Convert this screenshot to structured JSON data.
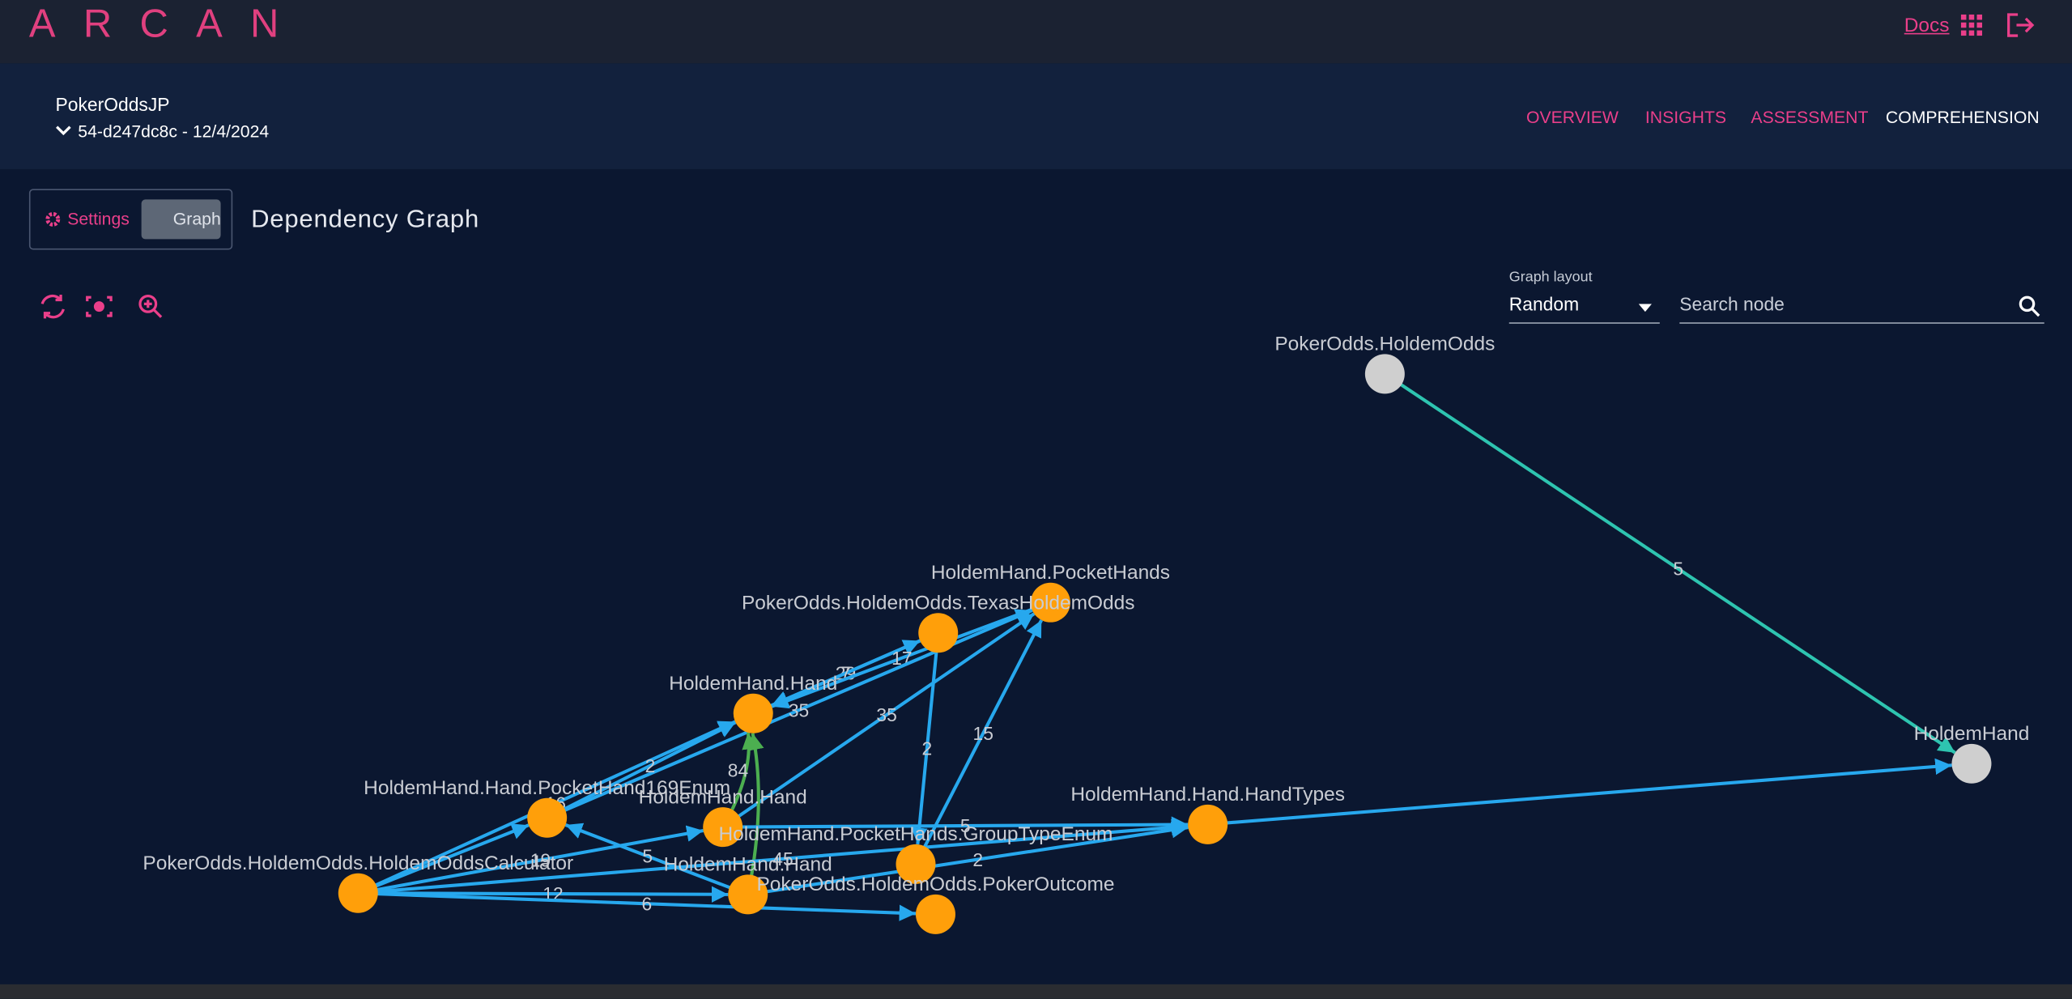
{
  "header": {
    "brand": "ARCAN",
    "docs": "Docs"
  },
  "project": {
    "name": "PokerOddsJP",
    "version": "54-d247dc8c - 12/4/2024"
  },
  "nav": [
    "OVERVIEW",
    "INSIGHTS",
    "ASSESSMENT",
    "COMPREHENSION"
  ],
  "tabs": [
    "Settings",
    "Graph"
  ],
  "title": "Dependency Graph",
  "controls": {
    "layout_label": "Graph layout",
    "layout_value": "Random",
    "search_placeholder": "Search node"
  },
  "graph": {
    "nodes": [
      {
        "label": "PokerOdds.HoldemOdds",
        "kind": "package"
      },
      {
        "label": "HoldemHand",
        "kind": "package"
      },
      {
        "label": "HoldemHand.PocketHands",
        "kind": "class"
      },
      {
        "label": "PokerOdds.HoldemOdds.TexasHoldemOdds",
        "kind": "class"
      },
      {
        "label": "HoldemHand.Hand",
        "kind": "class"
      },
      {
        "label": "HoldemHand.Hand.PocketHand169Enum",
        "kind": "class"
      },
      {
        "label": "HoldemHand.Hand",
        "kind": "class"
      },
      {
        "label": "HoldemHand.Hand.HandTypes",
        "kind": "class"
      },
      {
        "label": "HoldemHand.PocketHands.GroupTypeEnum",
        "kind": "class"
      },
      {
        "label": "PokerOdds.HoldemOdds.HoldemOddsCalculator",
        "kind": "class"
      },
      {
        "label": "HoldemHand.Hand",
        "kind": "class"
      },
      {
        "label": "PokerOdds.HoldemOdds.PokerOutcome",
        "kind": "class"
      }
    ],
    "edges": [
      {
        "from": 0,
        "to": 1,
        "label": "5",
        "color": "#2ec4b0"
      },
      {
        "from": 7,
        "to": 1,
        "color": "#27a8ee"
      },
      {
        "from": 4,
        "to": 3,
        "label": "29",
        "color": "#27a8ee"
      },
      {
        "from": 3,
        "to": 4,
        "label": "7",
        "color": "#27a8ee"
      },
      {
        "from": 2,
        "to": 4,
        "label": "17",
        "color": "#27a8ee"
      },
      {
        "from": 5,
        "to": 2,
        "label": "35",
        "color": "#27a8ee"
      },
      {
        "from": 6,
        "to": 2,
        "label": "35",
        "color": "#27a8ee"
      },
      {
        "from": 8,
        "to": 2,
        "label": "15",
        "color": "#27a8ee"
      },
      {
        "from": 3,
        "to": 8,
        "label": "2",
        "color": "#27a8ee"
      },
      {
        "from": 9,
        "to": 4,
        "label": "16",
        "color": "#27a8ee"
      },
      {
        "from": 5,
        "to": 4,
        "label": "2",
        "color": "#27a8ee"
      },
      {
        "from": 6,
        "to": 4,
        "label": "84",
        "color": "#4caf50"
      },
      {
        "from": 10,
        "to": 4,
        "color": "#4caf50"
      },
      {
        "from": 9,
        "to": 5,
        "color": "#27a8ee"
      },
      {
        "from": 10,
        "to": 5,
        "label": "5",
        "color": "#27a8ee"
      },
      {
        "from": 9,
        "to": 6,
        "label": "19",
        "color": "#27a8ee"
      },
      {
        "from": 9,
        "to": 10,
        "label": "12",
        "color": "#27a8ee"
      },
      {
        "from": 9,
        "to": 11,
        "label": "6",
        "color": "#27a8ee"
      },
      {
        "from": 9,
        "to": 7,
        "label": "45",
        "color": "#27a8ee"
      },
      {
        "from": 10,
        "to": 7,
        "label": "2",
        "color": "#27a8ee"
      },
      {
        "from": 6,
        "to": 7,
        "label": "5",
        "color": "#27a8ee"
      }
    ]
  }
}
